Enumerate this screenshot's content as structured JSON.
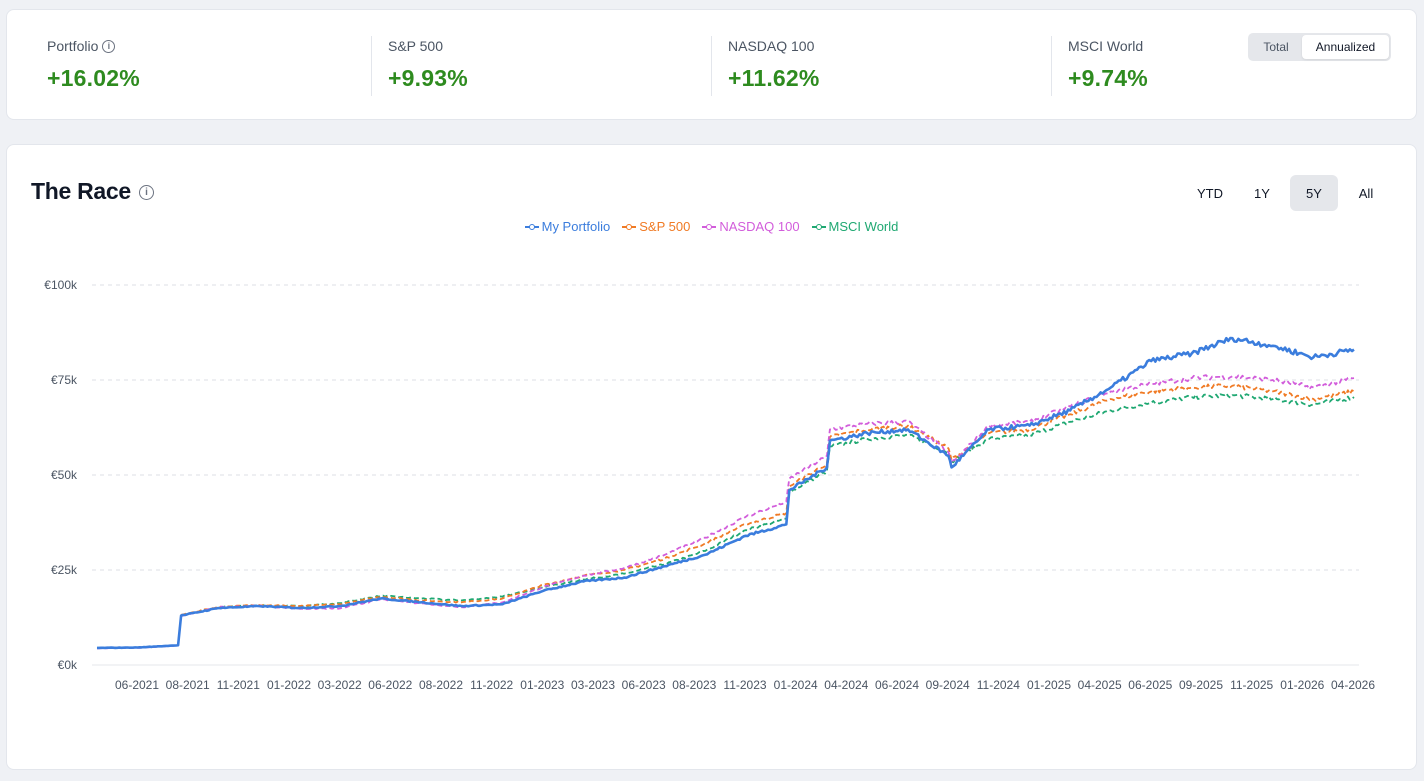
{
  "stats": [
    {
      "label": "Portfolio",
      "value": "+16.02%",
      "info": true
    },
    {
      "label": "S&P 500",
      "value": "+9.93%",
      "info": false
    },
    {
      "label": "NASDAQ 100",
      "value": "+11.62%",
      "info": false
    },
    {
      "label": "MSCI World",
      "value": "+9.74%",
      "info": false
    }
  ],
  "toggle": {
    "total": "Total",
    "annualized": "Annualized",
    "selected": "Annualized"
  },
  "race": {
    "title": "The Race",
    "info_icon": "info-icon"
  },
  "ranges": [
    {
      "label": "YTD",
      "active": false
    },
    {
      "label": "1Y",
      "active": false
    },
    {
      "label": "5Y",
      "active": true
    },
    {
      "label": "All",
      "active": false
    }
  ],
  "colors": {
    "positive": "#2e8b1f",
    "portfolio": "#3b7ddd",
    "sp500": "#f07a24",
    "nasdaq": "#d25ddb",
    "msci": "#1fa872"
  },
  "chart_data": {
    "type": "line",
    "y_tick_labels": [
      "€0k",
      "€25k",
      "€50k",
      "€75k",
      "€100k"
    ],
    "y_ticks": [
      0,
      25000,
      50000,
      75000,
      100000
    ],
    "ylim": [
      0,
      100000
    ],
    "x_tick_labels": [
      "06-2021",
      "08-2021",
      "11-2021",
      "01-2022",
      "03-2022",
      "06-2022",
      "08-2022",
      "11-2022",
      "01-2023",
      "03-2023",
      "06-2023",
      "08-2023",
      "11-2023",
      "01-2024",
      "04-2024",
      "06-2024",
      "09-2024",
      "11-2024",
      "01-2025",
      "04-2025",
      "06-2025",
      "09-2025",
      "11-2025",
      "01-2026",
      "04-2026"
    ],
    "x": [
      "2021-04",
      "2021-06",
      "2021-08",
      "2021-08b",
      "2021-11",
      "2022-01",
      "2022-03",
      "2022-06",
      "2022-08",
      "2022-11",
      "2023-01",
      "2023-03",
      "2023-06",
      "2023-08",
      "2023-11",
      "2024-01",
      "2024-04",
      "2024-06",
      "2024-08",
      "2024-08b",
      "2024-11",
      "2024-11b",
      "2025-01",
      "2025-02",
      "2025-04",
      "2025-04b",
      "2025-05",
      "2025-06",
      "2025-09",
      "2025-10",
      "2025-11",
      "2025-12",
      "2026-01",
      "2026-02",
      "2026-03",
      "2026-04"
    ],
    "grid": true,
    "legend": "top-center",
    "series": [
      {
        "name": "My Portfolio",
        "style": "solid",
        "color": "#3b7ddd",
        "values": [
          4500,
          4600,
          5200,
          13000,
          15000,
          15500,
          15000,
          15500,
          17500,
          16500,
          15500,
          16000,
          19500,
          22000,
          23000,
          26000,
          29000,
          34000,
          37000,
          46000,
          52000,
          59000,
          61000,
          62000,
          55000,
          52000,
          62000,
          63000,
          67000,
          73000,
          80000,
          82000,
          86000,
          84000,
          81000,
          83000
        ]
      },
      {
        "name": "S&P 500",
        "style": "dashed",
        "color": "#f07a24",
        "values": [
          4500,
          4600,
          5200,
          13200,
          15300,
          15800,
          15500,
          16000,
          18000,
          17000,
          16500,
          17500,
          21000,
          23500,
          25000,
          28000,
          32000,
          37000,
          40000,
          47000,
          53000,
          60000,
          62000,
          63000,
          57000,
          54000,
          61000,
          62000,
          66000,
          70000,
          72000,
          73000,
          73500,
          72000,
          70000,
          72000
        ]
      },
      {
        "name": "NASDAQ 100",
        "style": "dashed",
        "color": "#d25ddb",
        "values": [
          4400,
          4500,
          5100,
          12900,
          15200,
          15600,
          14800,
          14900,
          17300,
          16200,
          15200,
          16500,
          20500,
          23500,
          25500,
          29000,
          33500,
          39000,
          43000,
          49000,
          55000,
          62000,
          63500,
          64000,
          56000,
          53000,
          63000,
          64000,
          68000,
          72000,
          74000,
          75500,
          76000,
          75000,
          73000,
          75500
        ]
      },
      {
        "name": "MSCI World",
        "style": "dashed",
        "color": "#1fa872",
        "values": [
          4500,
          4600,
          5200,
          13100,
          15200,
          15700,
          15500,
          16300,
          18200,
          17500,
          17000,
          18000,
          20500,
          22500,
          24000,
          26500,
          30000,
          35500,
          38500,
          45500,
          51000,
          57500,
          59500,
          60500,
          56000,
          53500,
          59500,
          60500,
          64000,
          67000,
          69000,
          70500,
          71000,
          70000,
          68500,
          70500
        ]
      }
    ]
  }
}
